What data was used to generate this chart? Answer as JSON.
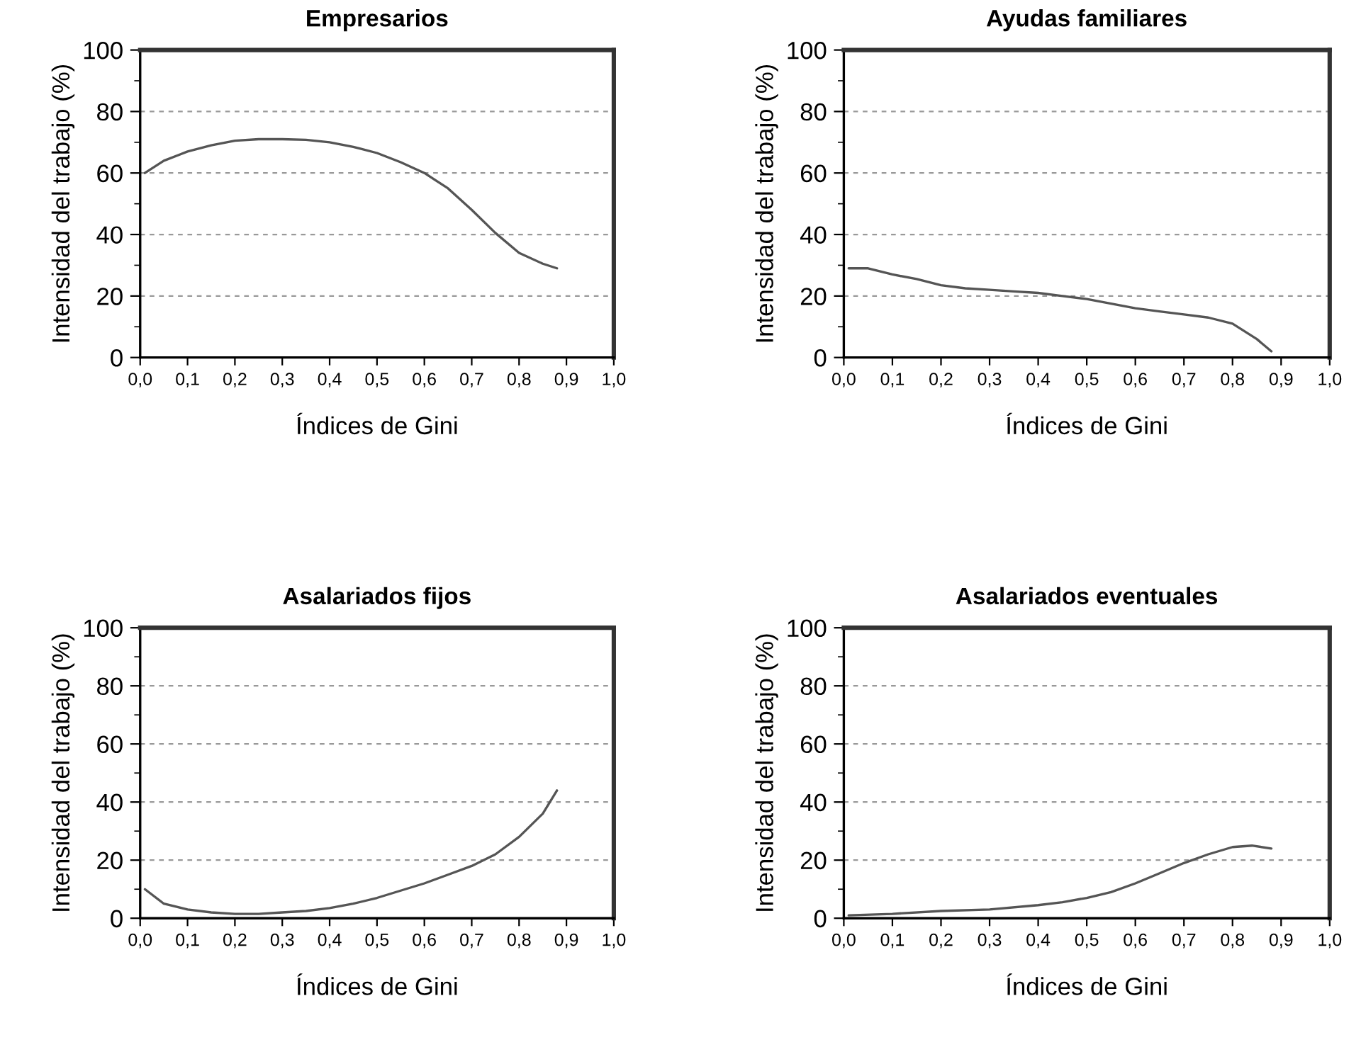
{
  "chart_data": [
    {
      "type": "line",
      "title": "Empresarios",
      "xlabel": "Índices de Gini",
      "ylabel": "Intensidad del trabajo (%)",
      "xlim": [
        0,
        1
      ],
      "ylim": [
        0,
        100
      ],
      "grid": "y",
      "line_style": "solid",
      "color": "#555555",
      "xticks": [
        {
          "value": 0,
          "label": "0,0"
        },
        {
          "value": 0.1,
          "label": "0,1"
        },
        {
          "value": 0.2,
          "label": "0,2"
        },
        {
          "value": 0.3,
          "label": "0,3"
        },
        {
          "value": 0.4,
          "label": "0,4"
        },
        {
          "value": 0.5,
          "label": "0,5"
        },
        {
          "value": 0.6,
          "label": "0,6"
        },
        {
          "value": 0.7,
          "label": "0,7"
        },
        {
          "value": 0.8,
          "label": "0,8"
        },
        {
          "value": 0.9,
          "label": "0,9"
        },
        {
          "value": 1,
          "label": "1,0"
        }
      ],
      "yticks": [
        0,
        {
          "value": 10,
          "label": null
        },
        20,
        {
          "value": 30,
          "label": null
        },
        40,
        {
          "value": 50,
          "label": null
        },
        60,
        {
          "value": 70,
          "label": null
        },
        80,
        {
          "value": 90,
          "label": null
        },
        100
      ],
      "x": [
        0.01,
        0.05,
        0.1,
        0.15,
        0.2,
        0.25,
        0.3,
        0.35,
        0.4,
        0.45,
        0.5,
        0.55,
        0.6,
        0.65,
        0.7,
        0.75,
        0.8,
        0.85,
        0.88
      ],
      "values": [
        60,
        64,
        67,
        69,
        70.5,
        71,
        71,
        70.8,
        70,
        68.5,
        66.5,
        63.5,
        60,
        55,
        48,
        40.5,
        34,
        30.5,
        29
      ]
    },
    {
      "type": "line",
      "title": "Ayudas familiares",
      "xlabel": "Índices de Gini",
      "ylabel": "Intensidad del trabajo (%)",
      "xlim": [
        0,
        1
      ],
      "ylim": [
        0,
        100
      ],
      "grid": "y",
      "line_style": "solid",
      "color": "#555555",
      "xticks": [
        {
          "value": 0,
          "label": "0,0"
        },
        {
          "value": 0.1,
          "label": "0,1"
        },
        {
          "value": 0.2,
          "label": "0,2"
        },
        {
          "value": 0.3,
          "label": "0,3"
        },
        {
          "value": 0.4,
          "label": "0,4"
        },
        {
          "value": 0.5,
          "label": "0,5"
        },
        {
          "value": 0.6,
          "label": "0,6"
        },
        {
          "value": 0.7,
          "label": "0,7"
        },
        {
          "value": 0.8,
          "label": "0,8"
        },
        {
          "value": 0.9,
          "label": "0,9"
        },
        {
          "value": 1,
          "label": "1,0"
        }
      ],
      "yticks": [
        0,
        {
          "value": 10,
          "label": null
        },
        20,
        {
          "value": 30,
          "label": null
        },
        40,
        {
          "value": 50,
          "label": null
        },
        60,
        {
          "value": 70,
          "label": null
        },
        80,
        {
          "value": 90,
          "label": null
        },
        100
      ],
      "x": [
        0.01,
        0.05,
        0.1,
        0.15,
        0.2,
        0.25,
        0.3,
        0.35,
        0.4,
        0.45,
        0.5,
        0.55,
        0.6,
        0.65,
        0.7,
        0.75,
        0.8,
        0.85,
        0.88
      ],
      "values": [
        29,
        29,
        27,
        25.5,
        23.5,
        22.5,
        22,
        21.5,
        21,
        20,
        19,
        17.5,
        16,
        15,
        14,
        13,
        11,
        6,
        2
      ]
    },
    {
      "type": "line",
      "title": "Asalariados fijos",
      "xlabel": "Índices de Gini",
      "ylabel": "Intensidad del trabajo (%)",
      "xlim": [
        0,
        1
      ],
      "ylim": [
        0,
        100
      ],
      "grid": "y",
      "line_style": "solid",
      "color": "#555555",
      "xticks": [
        {
          "value": 0,
          "label": "0,0"
        },
        {
          "value": 0.1,
          "label": "0,1"
        },
        {
          "value": 0.2,
          "label": "0,2"
        },
        {
          "value": 0.3,
          "label": "0,3"
        },
        {
          "value": 0.4,
          "label": "0,4"
        },
        {
          "value": 0.5,
          "label": "0,5"
        },
        {
          "value": 0.6,
          "label": "0,6"
        },
        {
          "value": 0.7,
          "label": "0,7"
        },
        {
          "value": 0.8,
          "label": "0,8"
        },
        {
          "value": 0.9,
          "label": "0,9"
        },
        {
          "value": 1,
          "label": "1,0"
        }
      ],
      "yticks": [
        0,
        {
          "value": 10,
          "label": null
        },
        20,
        {
          "value": 30,
          "label": null
        },
        40,
        {
          "value": 50,
          "label": null
        },
        60,
        {
          "value": 70,
          "label": null
        },
        80,
        {
          "value": 90,
          "label": null
        },
        100
      ],
      "x": [
        0.01,
        0.05,
        0.1,
        0.15,
        0.2,
        0.25,
        0.3,
        0.35,
        0.4,
        0.45,
        0.5,
        0.55,
        0.6,
        0.65,
        0.7,
        0.75,
        0.8,
        0.85,
        0.88
      ],
      "values": [
        10,
        5,
        3,
        2,
        1.5,
        1.5,
        2,
        2.5,
        3.5,
        5,
        7,
        9.5,
        12,
        15,
        18,
        22,
        28,
        36,
        44
      ]
    },
    {
      "type": "line",
      "title": "Asalariados eventuales",
      "xlabel": "Índices de Gini",
      "ylabel": "Intensidad del trabajo (%)",
      "xlim": [
        0,
        1
      ],
      "ylim": [
        0,
        100
      ],
      "grid": "y",
      "line_style": "solid",
      "color": "#555555",
      "xticks": [
        {
          "value": 0,
          "label": "0,0"
        },
        {
          "value": 0.1,
          "label": "0,1"
        },
        {
          "value": 0.2,
          "label": "0,2"
        },
        {
          "value": 0.3,
          "label": "0,3"
        },
        {
          "value": 0.4,
          "label": "0,4"
        },
        {
          "value": 0.5,
          "label": "0,5"
        },
        {
          "value": 0.6,
          "label": "0,6"
        },
        {
          "value": 0.7,
          "label": "0,7"
        },
        {
          "value": 0.8,
          "label": "0,8"
        },
        {
          "value": 0.9,
          "label": "0,9"
        },
        {
          "value": 1,
          "label": "1,0"
        }
      ],
      "yticks": [
        0,
        {
          "value": 10,
          "label": null
        },
        20,
        {
          "value": 30,
          "label": null
        },
        40,
        {
          "value": 50,
          "label": null
        },
        60,
        {
          "value": 70,
          "label": null
        },
        80,
        {
          "value": 90,
          "label": null
        },
        100
      ],
      "x": [
        0.01,
        0.1,
        0.2,
        0.3,
        0.4,
        0.45,
        0.5,
        0.55,
        0.6,
        0.65,
        0.7,
        0.75,
        0.8,
        0.84,
        0.88
      ],
      "values": [
        1,
        1.5,
        2.5,
        3,
        4.5,
        5.5,
        7,
        9,
        12,
        15.5,
        19,
        22,
        24.5,
        25,
        24
      ]
    }
  ]
}
